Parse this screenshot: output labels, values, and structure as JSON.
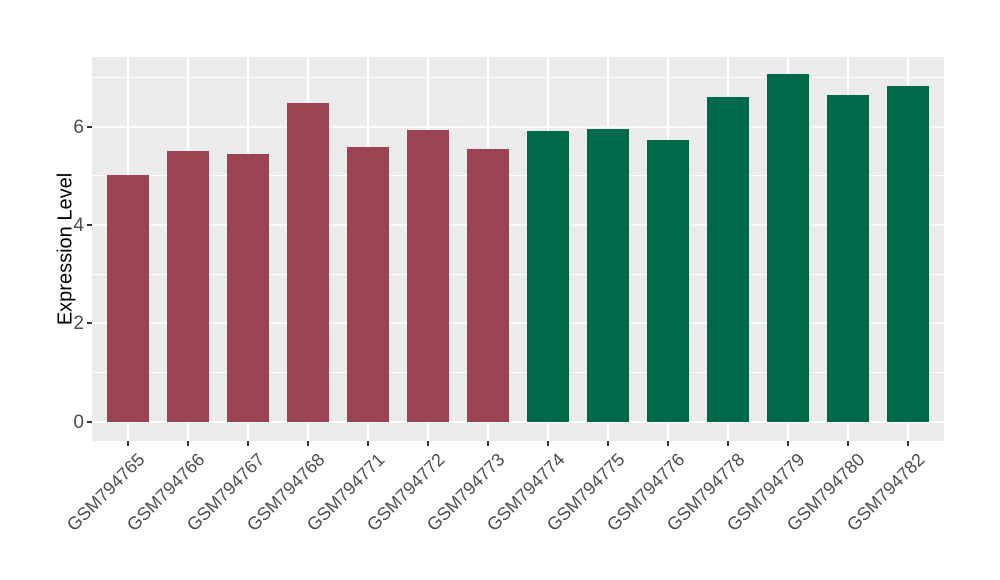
{
  "chart_data": {
    "type": "bar",
    "title": "",
    "ylabel": "Expression Level",
    "xlabel": "",
    "categories": [
      "GSM794765",
      "GSM794766",
      "GSM794767",
      "GSM794768",
      "GSM794771",
      "GSM794772",
      "GSM794773",
      "GSM794774",
      "GSM794775",
      "GSM794776",
      "GSM794778",
      "GSM794779",
      "GSM794780",
      "GSM794782"
    ],
    "values": [
      5.02,
      5.51,
      5.45,
      6.48,
      5.59,
      5.93,
      5.54,
      5.92,
      5.96,
      5.74,
      6.61,
      7.07,
      6.65,
      6.84
    ],
    "bar_colors": [
      "#9A4352",
      "#9A4352",
      "#9A4352",
      "#9A4352",
      "#9A4352",
      "#9A4352",
      "#9A4352",
      "#00694A",
      "#00694A",
      "#00694A",
      "#00694A",
      "#00694A",
      "#00694A",
      "#00694A"
    ],
    "group_colors": {
      "left_group": "#9A4352",
      "right_group": "#00694A"
    },
    "yticks": [
      0,
      2,
      4,
      6
    ],
    "yticks_minor": [
      1,
      3,
      5,
      7
    ],
    "ylim": [
      -0.39,
      7.42
    ],
    "bar_width_fraction": 0.7,
    "grid": true,
    "legend": "none",
    "x_label_angle_deg": -45,
    "panel_bg": "#EBEBEB",
    "grid_color": "#FFFFFF",
    "axis_text_color": "#4D4D4D",
    "tick_color": "#333333"
  }
}
